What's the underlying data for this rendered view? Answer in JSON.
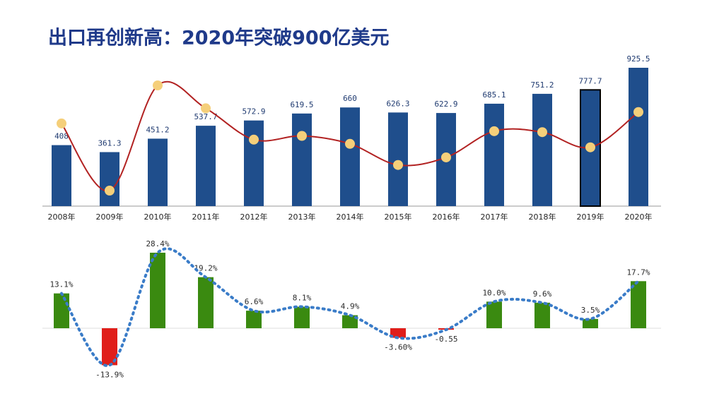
{
  "chart_data": [
    {
      "type": "bar",
      "title": "出口再创新高：2020年突破900亿美元",
      "categories": [
        "2008年",
        "2009年",
        "2010年",
        "2011年",
        "2012年",
        "2013年",
        "2014年",
        "2015年",
        "2016年",
        "2017年",
        "2018年",
        "2019年",
        "2020年"
      ],
      "values": [
        408.0,
        361.3,
        451.2,
        537.7,
        572.9,
        619.5,
        660.0,
        626.3,
        622.9,
        685.1,
        751.2,
        777.7,
        925.5
      ],
      "color": "#1f4e8c",
      "highlight": "2019年",
      "highlight_color": "#000000",
      "line_color": "#b22222",
      "marker_color": "#f5cf7a"
    },
    {
      "type": "bar",
      "categories": [
        "2008年",
        "2009年",
        "2010年",
        "2011年",
        "2012年",
        "2013年",
        "2014年",
        "2015年",
        "2016年",
        "2017年",
        "2018年",
        "2019年",
        "2020年"
      ],
      "values": [
        13.1,
        -13.9,
        28.4,
        19.2,
        6.6,
        8.1,
        4.9,
        -3.6,
        -0.55,
        10.0,
        9.6,
        3.5,
        17.7
      ],
      "value_labels": [
        "13.1%",
        "-13.9%",
        "28.4%",
        "19.2%",
        "6.6%",
        "8.1%",
        "4.9%",
        "-3.60%",
        "-0.55",
        "10.0%",
        "9.6%",
        "3.5%",
        "17.7%"
      ],
      "color": "#3a8a10",
      "negative_color": "#e01e1a",
      "line_color": "#3a7cc8"
    }
  ]
}
